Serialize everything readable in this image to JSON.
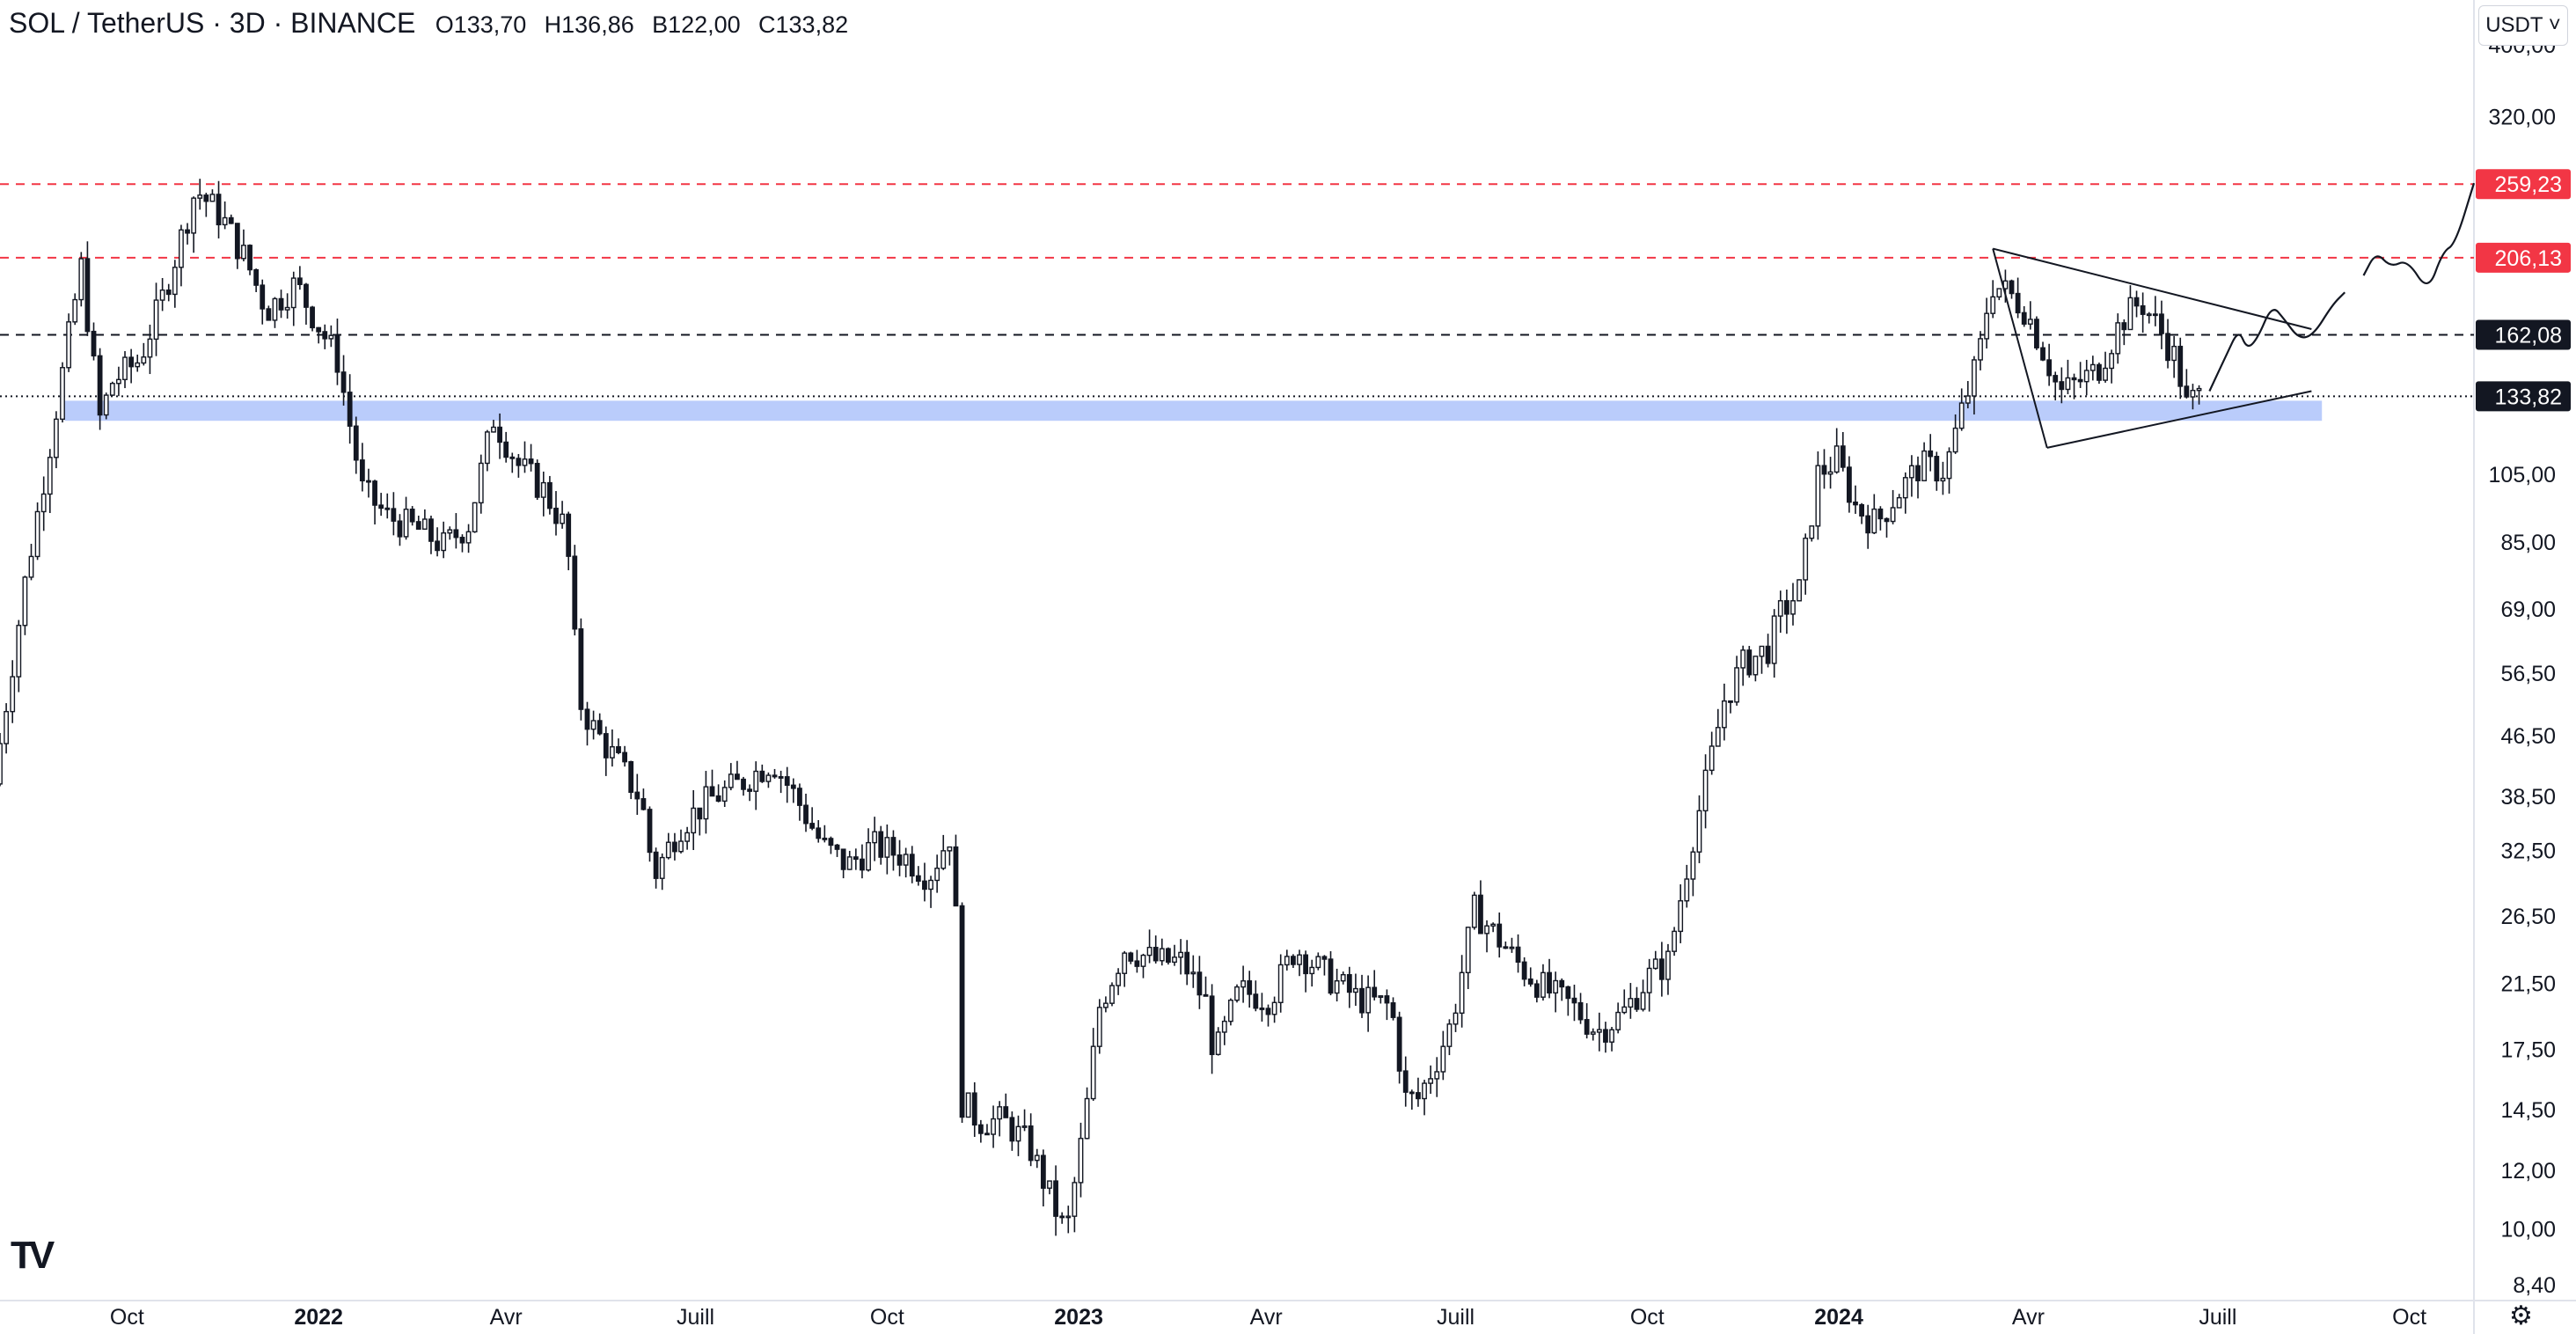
{
  "header": {
    "symbol": "SOL / TetherUS · 3D · BINANCE",
    "open": "O133,70",
    "high": "H136,86",
    "low": "B122,00",
    "close": "C133,82"
  },
  "currency_button": "USDT ˅",
  "logo": "TV",
  "settings_icon": "gear-icon",
  "chart_data": {
    "type": "candlestick",
    "symbol": "SOL / TetherUS",
    "interval": "3D",
    "exchange": "BINANCE",
    "y_scale": "log",
    "ylim": [
      8.0,
      460.0
    ],
    "xlim": [
      "2021-08-01",
      "2024-11-01"
    ],
    "y_ticks": [
      {
        "value": 400,
        "label": "400,00"
      },
      {
        "value": 320,
        "label": "320,00"
      },
      {
        "value": 105,
        "label": "105,00"
      },
      {
        "value": 85,
        "label": "85,00"
      },
      {
        "value": 69,
        "label": "69,00"
      },
      {
        "value": 56.5,
        "label": "56,50"
      },
      {
        "value": 46.5,
        "label": "46,50"
      },
      {
        "value": 38.5,
        "label": "38,50"
      },
      {
        "value": 32.5,
        "label": "32,50"
      },
      {
        "value": 26.5,
        "label": "26,50"
      },
      {
        "value": 21.5,
        "label": "21,50"
      },
      {
        "value": 17.5,
        "label": "17,50"
      },
      {
        "value": 14.5,
        "label": "14,50"
      },
      {
        "value": 12,
        "label": "12,00"
      },
      {
        "value": 10,
        "label": "10,00"
      },
      {
        "value": 8.4,
        "label": "8,40"
      }
    ],
    "x_ticks": [
      {
        "date": "2021-10-01",
        "label": "Oct",
        "bold": false
      },
      {
        "date": "2022-01-01",
        "label": "2022",
        "bold": true
      },
      {
        "date": "2022-04-01",
        "label": "Avr",
        "bold": false
      },
      {
        "date": "2022-07-01",
        "label": "Juill",
        "bold": false
      },
      {
        "date": "2022-10-01",
        "label": "Oct",
        "bold": false
      },
      {
        "date": "2023-01-01",
        "label": "2023",
        "bold": true
      },
      {
        "date": "2023-04-01",
        "label": "Avr",
        "bold": false
      },
      {
        "date": "2023-07-01",
        "label": "Juill",
        "bold": false
      },
      {
        "date": "2023-10-01",
        "label": "Oct",
        "bold": false
      },
      {
        "date": "2024-01-01",
        "label": "2024",
        "bold": true
      },
      {
        "date": "2024-04-01",
        "label": "Avr",
        "bold": false
      },
      {
        "date": "2024-07-01",
        "label": "Juill",
        "bold": false
      },
      {
        "date": "2024-10-01",
        "label": "Oct",
        "bold": false
      }
    ],
    "price_path": [
      [
        "2021-08-01",
        40
      ],
      [
        "2021-08-16",
        75
      ],
      [
        "2021-08-28",
        115
      ],
      [
        "2021-09-09",
        180
      ],
      [
        "2021-09-12",
        200
      ],
      [
        "2021-09-21",
        125
      ],
      [
        "2021-09-27",
        140
      ],
      [
        "2021-10-10",
        150
      ],
      [
        "2021-10-22",
        185
      ],
      [
        "2021-11-06",
        255
      ],
      [
        "2021-11-18",
        235
      ],
      [
        "2021-11-30",
        205
      ],
      [
        "2021-12-10",
        175
      ],
      [
        "2021-12-24",
        190
      ],
      [
        "2022-01-05",
        165
      ],
      [
        "2022-01-13",
        150
      ],
      [
        "2022-01-25",
        100
      ],
      [
        "2022-02-06",
        92
      ],
      [
        "2022-02-22",
        88
      ],
      [
        "2022-03-05",
        84
      ],
      [
        "2022-03-17",
        90
      ],
      [
        "2022-03-29",
        125
      ],
      [
        "2022-04-10",
        108
      ],
      [
        "2022-04-22",
        100
      ],
      [
        "2022-05-03",
        88
      ],
      [
        "2022-05-09",
        52
      ],
      [
        "2022-05-15",
        48
      ],
      [
        "2022-05-27",
        43
      ],
      [
        "2022-06-08",
        38
      ],
      [
        "2022-06-14",
        30
      ],
      [
        "2022-06-26",
        35
      ],
      [
        "2022-07-10",
        38
      ],
      [
        "2022-07-25",
        40
      ],
      [
        "2022-08-10",
        43
      ],
      [
        "2022-08-22",
        38
      ],
      [
        "2022-09-03",
        33
      ],
      [
        "2022-09-15",
        31
      ],
      [
        "2022-09-27",
        33
      ],
      [
        "2022-10-12",
        32
      ],
      [
        "2022-10-24",
        30
      ],
      [
        "2022-11-05",
        35
      ],
      [
        "2022-11-08",
        15
      ],
      [
        "2022-11-17",
        14
      ],
      [
        "2022-11-29",
        14
      ],
      [
        "2022-12-11",
        13
      ],
      [
        "2022-12-29",
        9.8
      ],
      [
        "2023-01-07",
        14
      ],
      [
        "2023-01-14",
        20
      ],
      [
        "2023-01-26",
        24
      ],
      [
        "2023-02-11",
        23
      ],
      [
        "2023-02-23",
        23
      ],
      [
        "2023-03-07",
        20
      ],
      [
        "2023-03-10",
        17
      ],
      [
        "2023-03-22",
        21
      ],
      [
        "2023-04-06",
        20.5
      ],
      [
        "2023-04-18",
        24
      ],
      [
        "2023-05-03",
        22
      ],
      [
        "2023-05-18",
        20.5
      ],
      [
        "2023-06-03",
        20
      ],
      [
        "2023-06-10",
        15
      ],
      [
        "2023-06-16",
        15
      ],
      [
        "2023-06-25",
        17
      ],
      [
        "2023-07-02",
        19
      ],
      [
        "2023-07-13",
        27
      ],
      [
        "2023-07-23",
        25
      ],
      [
        "2023-08-05",
        22.5
      ],
      [
        "2023-08-17",
        21
      ],
      [
        "2023-08-29",
        20
      ],
      [
        "2023-09-10",
        18.5
      ],
      [
        "2023-09-22",
        19.5
      ],
      [
        "2023-10-05",
        22
      ],
      [
        "2023-10-14",
        23
      ],
      [
        "2023-10-20",
        28
      ],
      [
        "2023-10-26",
        34
      ],
      [
        "2023-11-01",
        40
      ],
      [
        "2023-11-10",
        52
      ],
      [
        "2023-11-19",
        58
      ],
      [
        "2023-12-01",
        61
      ],
      [
        "2023-12-07",
        68
      ],
      [
        "2023-12-16",
        73
      ],
      [
        "2023-12-25",
        105
      ],
      [
        "2024-01-03",
        110
      ],
      [
        "2024-01-12",
        95
      ],
      [
        "2024-01-22",
        90
      ],
      [
        "2024-01-31",
        98
      ],
      [
        "2024-02-12",
        108
      ],
      [
        "2024-02-24",
        106
      ],
      [
        "2024-03-02",
        125
      ],
      [
        "2024-03-11",
        150
      ],
      [
        "2024-03-17",
        190
      ],
      [
        "2024-03-25",
        185
      ],
      [
        "2024-04-03",
        175
      ],
      [
        "2024-04-13",
        150
      ],
      [
        "2024-04-19",
        135
      ],
      [
        "2024-04-28",
        140
      ],
      [
        "2024-05-07",
        145
      ],
      [
        "2024-05-19",
        170
      ],
      [
        "2024-05-28",
        180
      ],
      [
        "2024-06-06",
        165
      ],
      [
        "2024-06-14",
        150
      ],
      [
        "2024-06-19",
        130
      ],
      [
        "2024-06-24",
        133.82
      ]
    ],
    "price_lines": [
      {
        "value": 259.23,
        "label": "259,23",
        "style": "dashed",
        "color": "#f23645"
      },
      {
        "value": 206.13,
        "label": "206,13",
        "style": "dashed",
        "color": "#f23645"
      },
      {
        "value": 162.08,
        "label": "162,08",
        "style": "dashed",
        "color": "#131722"
      },
      {
        "value": 133.82,
        "label": "133,82",
        "style": "dotted",
        "color": "#131722"
      }
    ],
    "support_zone": {
      "from": "2021-09-01",
      "to": "2024-08-20",
      "low": 124,
      "high": 132,
      "color": "#b3c7fb"
    },
    "triangle": {
      "upper": [
        [
          "2024-03-15",
          212
        ],
        [
          "2024-08-15",
          165
        ]
      ],
      "lower": [
        [
          "2024-04-10",
          114
        ],
        [
          "2024-08-15",
          136
        ]
      ],
      "left_side": [
        [
          "2024-03-15",
          212
        ],
        [
          "2024-04-10",
          114
        ]
      ]
    },
    "projection": [
      [
        "2024-06-27",
        136
      ],
      [
        "2024-07-05",
        152
      ],
      [
        "2024-07-11",
        165
      ],
      [
        "2024-07-15",
        155
      ],
      [
        "2024-07-20",
        160
      ],
      [
        "2024-07-27",
        178
      ],
      [
        "2024-08-02",
        170
      ],
      [
        "2024-08-09",
        160
      ],
      [
        "2024-08-16",
        162
      ],
      [
        "2024-08-25",
        178
      ],
      [
        "2024-08-31",
        185
      ]
    ],
    "projection_2": [
      [
        "2024-09-09",
        195
      ],
      [
        "2024-09-15",
        210
      ],
      [
        "2024-09-22",
        200
      ],
      [
        "2024-09-30",
        205
      ],
      [
        "2024-10-10",
        185
      ],
      [
        "2024-10-17",
        210
      ],
      [
        "2024-10-23",
        215
      ],
      [
        "2024-11-01",
        260
      ]
    ]
  }
}
